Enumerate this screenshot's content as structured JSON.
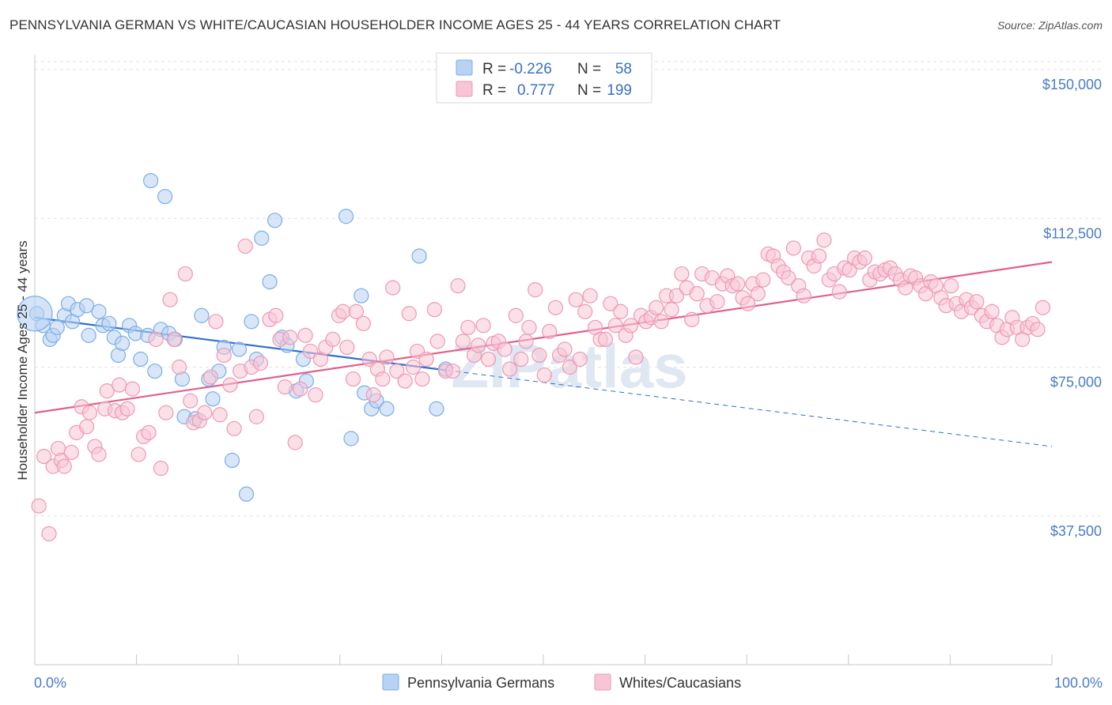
{
  "title": "PENNSYLVANIA GERMAN VS WHITE/CAUCASIAN HOUSEHOLDER INCOME AGES 25 - 44 YEARS CORRELATION CHART",
  "source": "Source: ZipAtlas.com",
  "watermark": "ZIPatlas",
  "chart_data": {
    "type": "scatter",
    "ylabel": "Householder Income Ages 25 - 44 years",
    "xlim": [
      0,
      100
    ],
    "ylim": [
      0,
      152000
    ],
    "yticks": [
      37500,
      75000,
      112500,
      150000
    ],
    "ytick_labels": [
      "$37,500",
      "$75,000",
      "$112,500",
      "$150,000"
    ],
    "xtick_labels": [
      "0.0%",
      "100.0%"
    ],
    "grid": true,
    "legend_position": "top-center",
    "stats": [
      {
        "r_label": "R =",
        "r": "-0.226",
        "n_label": "N =",
        "n": "58"
      },
      {
        "r_label": "R =",
        "r": "0.777",
        "n_label": "N =",
        "n": "199"
      }
    ],
    "series": [
      {
        "name": "Pennsylvania Germans",
        "color": "#7aaee8",
        "fill": "#b8d2f3",
        "line_color": "#2f6fcc",
        "trend_solid": [
          [
            0,
            87500
          ],
          [
            40.5,
            74200
          ]
        ],
        "trend_dashed": [
          [
            40.5,
            74200
          ],
          [
            100,
            55000
          ]
        ],
        "points": [
          [
            0.2,
            88.5
          ],
          [
            0.8,
            85.5
          ],
          [
            1.5,
            82
          ],
          [
            1.8,
            83
          ],
          [
            2.2,
            85
          ],
          [
            2.9,
            88
          ],
          [
            3.3,
            91
          ],
          [
            3.7,
            86.5
          ],
          [
            4.2,
            89.5
          ],
          [
            5.1,
            90.5
          ],
          [
            5.3,
            83
          ],
          [
            6.3,
            89
          ],
          [
            6.7,
            85.5
          ],
          [
            7.3,
            86
          ],
          [
            7.8,
            82.5
          ],
          [
            8.2,
            78
          ],
          [
            8.6,
            81
          ],
          [
            9.3,
            85.5
          ],
          [
            9.9,
            83.5
          ],
          [
            10.4,
            77
          ],
          [
            11.1,
            83
          ],
          [
            11.4,
            122
          ],
          [
            11.8,
            74
          ],
          [
            12.4,
            84.5
          ],
          [
            12.8,
            118
          ],
          [
            13.2,
            83.5
          ],
          [
            13.8,
            82
          ],
          [
            14.5,
            72
          ],
          [
            14.7,
            62.5
          ],
          [
            15.8,
            62
          ],
          [
            16.4,
            88
          ],
          [
            17.1,
            72
          ],
          [
            17.5,
            67
          ],
          [
            18.1,
            74
          ],
          [
            18.6,
            80
          ],
          [
            19.4,
            51.5
          ],
          [
            20.1,
            79.5
          ],
          [
            20.8,
            43
          ],
          [
            21.3,
            86.5
          ],
          [
            21.8,
            77
          ],
          [
            22.3,
            107.5
          ],
          [
            23.1,
            96.5
          ],
          [
            23.6,
            112
          ],
          [
            24.3,
            82.5
          ],
          [
            24.8,
            80.5
          ],
          [
            25.7,
            69
          ],
          [
            26.4,
            77
          ],
          [
            26.7,
            71.5
          ],
          [
            30.6,
            113
          ],
          [
            31.1,
            57
          ],
          [
            32.1,
            93
          ],
          [
            32.4,
            68.5
          ],
          [
            33.1,
            64.5
          ],
          [
            33.6,
            66.5
          ],
          [
            34.6,
            64.5
          ],
          [
            37.8,
            103
          ],
          [
            39.5,
            64.5
          ],
          [
            40.4,
            74.5
          ]
        ]
      },
      {
        "name": "Whites/Caucasians",
        "color": "#ee98b4",
        "fill": "#f7c6d6",
        "line_color": "#e0608c",
        "trend_solid": [
          [
            0,
            63500
          ],
          [
            100,
            101500
          ]
        ],
        "points": [
          [
            0.4,
            40
          ],
          [
            0.9,
            52.5
          ],
          [
            1.4,
            33
          ],
          [
            1.8,
            50
          ],
          [
            2.3,
            54.5
          ],
          [
            2.6,
            51.5
          ],
          [
            2.9,
            50
          ],
          [
            3.6,
            53.5
          ],
          [
            4.1,
            58.5
          ],
          [
            4.6,
            65
          ],
          [
            5.1,
            60
          ],
          [
            5.4,
            63.5
          ],
          [
            5.9,
            55
          ],
          [
            6.3,
            53
          ],
          [
            6.9,
            64.5
          ],
          [
            7.1,
            69
          ],
          [
            7.9,
            64
          ],
          [
            8.3,
            70.5
          ],
          [
            8.6,
            63.5
          ],
          [
            9.1,
            64.5
          ],
          [
            9.6,
            69.5
          ],
          [
            10.2,
            53
          ],
          [
            10.7,
            57.5
          ],
          [
            11.2,
            58.5
          ],
          [
            11.9,
            82
          ],
          [
            12.4,
            49.5
          ],
          [
            12.9,
            63.5
          ],
          [
            13.3,
            92
          ],
          [
            13.7,
            82
          ],
          [
            14.2,
            75
          ],
          [
            14.8,
            98.5
          ],
          [
            15.3,
            66.5
          ],
          [
            15.6,
            61
          ],
          [
            16.2,
            61.5
          ],
          [
            16.7,
            63.5
          ],
          [
            17.3,
            72.5
          ],
          [
            17.8,
            86.5
          ],
          [
            18.2,
            63
          ],
          [
            18.6,
            78
          ],
          [
            19.2,
            70.5
          ],
          [
            19.6,
            59.5
          ],
          [
            20.2,
            74
          ],
          [
            20.7,
            105.5
          ],
          [
            21.3,
            75
          ],
          [
            21.8,
            62.5
          ],
          [
            22.2,
            76
          ],
          [
            23.1,
            87
          ],
          [
            23.7,
            88
          ],
          [
            24.1,
            82
          ],
          [
            24.6,
            70
          ],
          [
            25.1,
            82.5
          ],
          [
            25.6,
            56
          ],
          [
            26.1,
            69.5
          ],
          [
            26.6,
            83
          ],
          [
            27.1,
            79
          ],
          [
            27.6,
            68
          ],
          [
            28.1,
            77
          ],
          [
            28.6,
            80
          ],
          [
            29.3,
            82
          ],
          [
            29.9,
            88
          ],
          [
            30.3,
            89
          ],
          [
            30.7,
            80
          ],
          [
            31.3,
            72
          ],
          [
            31.6,
            89
          ],
          [
            32.3,
            86
          ],
          [
            32.9,
            77
          ],
          [
            33.3,
            68
          ],
          [
            33.7,
            74.5
          ],
          [
            34.2,
            72
          ],
          [
            34.6,
            77.5
          ],
          [
            35.2,
            95
          ],
          [
            35.6,
            74
          ],
          [
            36.4,
            71.5
          ],
          [
            36.8,
            88.5
          ],
          [
            37.2,
            75
          ],
          [
            37.6,
            79
          ],
          [
            38.1,
            72
          ],
          [
            38.5,
            77
          ],
          [
            39.3,
            89.5
          ],
          [
            39.6,
            81.5
          ],
          [
            40.4,
            74
          ],
          [
            41.1,
            74
          ],
          [
            41.6,
            95.5
          ],
          [
            42.1,
            81.5
          ],
          [
            42.6,
            85
          ],
          [
            43.2,
            78
          ],
          [
            43.6,
            80.5
          ],
          [
            44.1,
            85.5
          ],
          [
            44.6,
            77
          ],
          [
            45.1,
            81
          ],
          [
            45.6,
            81.5
          ],
          [
            46.2,
            79.5
          ],
          [
            46.7,
            74.5
          ],
          [
            47.3,
            88
          ],
          [
            47.8,
            77
          ],
          [
            48.3,
            81.5
          ],
          [
            48.6,
            85
          ],
          [
            49.2,
            94.5
          ],
          [
            49.6,
            78
          ],
          [
            50.1,
            73
          ],
          [
            50.6,
            84
          ],
          [
            51.2,
            90
          ],
          [
            51.6,
            78
          ],
          [
            52.1,
            79.5
          ],
          [
            52.6,
            75
          ],
          [
            53.2,
            92
          ],
          [
            53.6,
            77
          ],
          [
            54.1,
            89
          ],
          [
            54.6,
            93
          ],
          [
            55.1,
            85
          ],
          [
            55.6,
            82
          ],
          [
            56.1,
            82
          ],
          [
            56.6,
            91
          ],
          [
            57.1,
            85.5
          ],
          [
            57.6,
            89
          ],
          [
            58.1,
            83
          ],
          [
            58.6,
            85.5
          ],
          [
            59.1,
            77.5
          ],
          [
            59.6,
            88
          ],
          [
            60.1,
            86.5
          ],
          [
            60.6,
            87.5
          ],
          [
            61.1,
            90
          ],
          [
            61.6,
            86.5
          ],
          [
            62.1,
            93
          ],
          [
            62.6,
            89.5
          ],
          [
            63.1,
            93
          ],
          [
            63.6,
            98.5
          ],
          [
            64.1,
            95
          ],
          [
            64.6,
            87
          ],
          [
            65.1,
            93.5
          ],
          [
            65.6,
            98.5
          ],
          [
            66.1,
            90.5
          ],
          [
            66.6,
            97.5
          ],
          [
            67.1,
            91.5
          ],
          [
            67.6,
            96
          ],
          [
            68.1,
            98
          ],
          [
            68.6,
            95.5
          ],
          [
            69.1,
            96
          ],
          [
            69.6,
            92.5
          ],
          [
            70.1,
            91
          ],
          [
            70.6,
            96
          ],
          [
            71.1,
            93.5
          ],
          [
            71.6,
            97
          ],
          [
            72.1,
            103.5
          ],
          [
            72.6,
            103
          ],
          [
            73.1,
            100.5
          ],
          [
            73.6,
            99
          ],
          [
            74.1,
            97.5
          ],
          [
            74.6,
            105
          ],
          [
            75.1,
            95.5
          ],
          [
            75.6,
            93
          ],
          [
            76.1,
            102.5
          ],
          [
            76.6,
            100.5
          ],
          [
            77.1,
            103
          ],
          [
            77.6,
            107
          ],
          [
            78.1,
            97
          ],
          [
            78.6,
            98.5
          ],
          [
            79.1,
            94
          ],
          [
            79.6,
            100
          ],
          [
            80.1,
            99.5
          ],
          [
            80.6,
            102.5
          ],
          [
            81.1,
            101.5
          ],
          [
            81.6,
            102.5
          ],
          [
            82.1,
            97
          ],
          [
            82.6,
            99
          ],
          [
            83.1,
            98.5
          ],
          [
            83.6,
            99.5
          ],
          [
            84.1,
            100
          ],
          [
            84.6,
            98.5
          ],
          [
            85.1,
            97
          ],
          [
            85.6,
            95
          ],
          [
            86.1,
            98
          ],
          [
            86.6,
            97.5
          ],
          [
            87.1,
            95.5
          ],
          [
            87.6,
            93.5
          ],
          [
            88.1,
            96.5
          ],
          [
            88.6,
            95.5
          ],
          [
            89.1,
            92.5
          ],
          [
            89.6,
            90.5
          ],
          [
            90.1,
            95.5
          ],
          [
            90.6,
            91
          ],
          [
            91.1,
            89
          ],
          [
            91.6,
            92
          ],
          [
            92.1,
            90
          ],
          [
            92.6,
            91.5
          ],
          [
            93.1,
            88
          ],
          [
            93.6,
            86.5
          ],
          [
            94.1,
            89
          ],
          [
            94.6,
            85.5
          ],
          [
            95.1,
            82.5
          ],
          [
            95.6,
            84.5
          ],
          [
            96.1,
            87.5
          ],
          [
            96.6,
            85
          ],
          [
            97.1,
            82
          ],
          [
            97.6,
            85
          ],
          [
            98.1,
            86
          ],
          [
            98.6,
            84.5
          ],
          [
            99.1,
            90
          ]
        ]
      }
    ]
  }
}
